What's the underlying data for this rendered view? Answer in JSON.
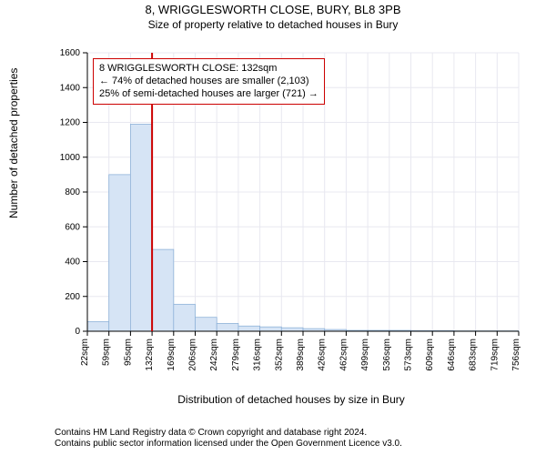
{
  "titles": {
    "line1": "8, WRIGGLESWORTH CLOSE, BURY, BL8 3PB",
    "line2": "Size of property relative to detached houses in Bury"
  },
  "axis": {
    "x_label": "Distribution of detached houses by size in Bury",
    "y_label": "Number of detached properties",
    "x_ticks": [
      "22sqm",
      "59sqm",
      "95sqm",
      "132sqm",
      "169sqm",
      "206sqm",
      "242sqm",
      "279sqm",
      "316sqm",
      "352sqm",
      "389sqm",
      "426sqm",
      "462sqm",
      "499sqm",
      "536sqm",
      "573sqm",
      "609sqm",
      "646sqm",
      "683sqm",
      "719sqm",
      "756sqm"
    ],
    "y_ticks": [
      0,
      200,
      400,
      600,
      800,
      1000,
      1200,
      1400,
      1600
    ],
    "ylim": [
      0,
      1600
    ]
  },
  "histogram": {
    "type": "histogram",
    "values": [
      55,
      900,
      1190,
      470,
      155,
      80,
      45,
      30,
      25,
      20,
      15,
      10,
      5,
      5,
      5,
      3,
      3,
      2,
      2,
      2
    ],
    "bar_fill": "#d6e4f5",
    "bar_stroke": "#8fb3d9",
    "bar_stroke_width": 0.8
  },
  "marker": {
    "value_sqm": 132,
    "line_color": "#cc0000",
    "line_width": 2
  },
  "infobox": {
    "lines": [
      "8 WRIGGLESWORTH CLOSE: 132sqm",
      "← 74% of detached houses are smaller (2,103)",
      "25% of semi-detached houses are larger (721) →"
    ],
    "border_color": "#cc0000",
    "bg_color": "#ffffff",
    "fontsize": 11
  },
  "style": {
    "grid_color": "#e8e8f0",
    "axis_color": "#000000",
    "background": "#ffffff",
    "tick_font_size": 10,
    "label_font_size": 12,
    "title_font_size": 13
  },
  "copyright": {
    "line1": "Contains HM Land Registry data © Crown copyright and database right 2024.",
    "line2": "Contains public sector information licensed under the Open Government Licence v3.0."
  }
}
